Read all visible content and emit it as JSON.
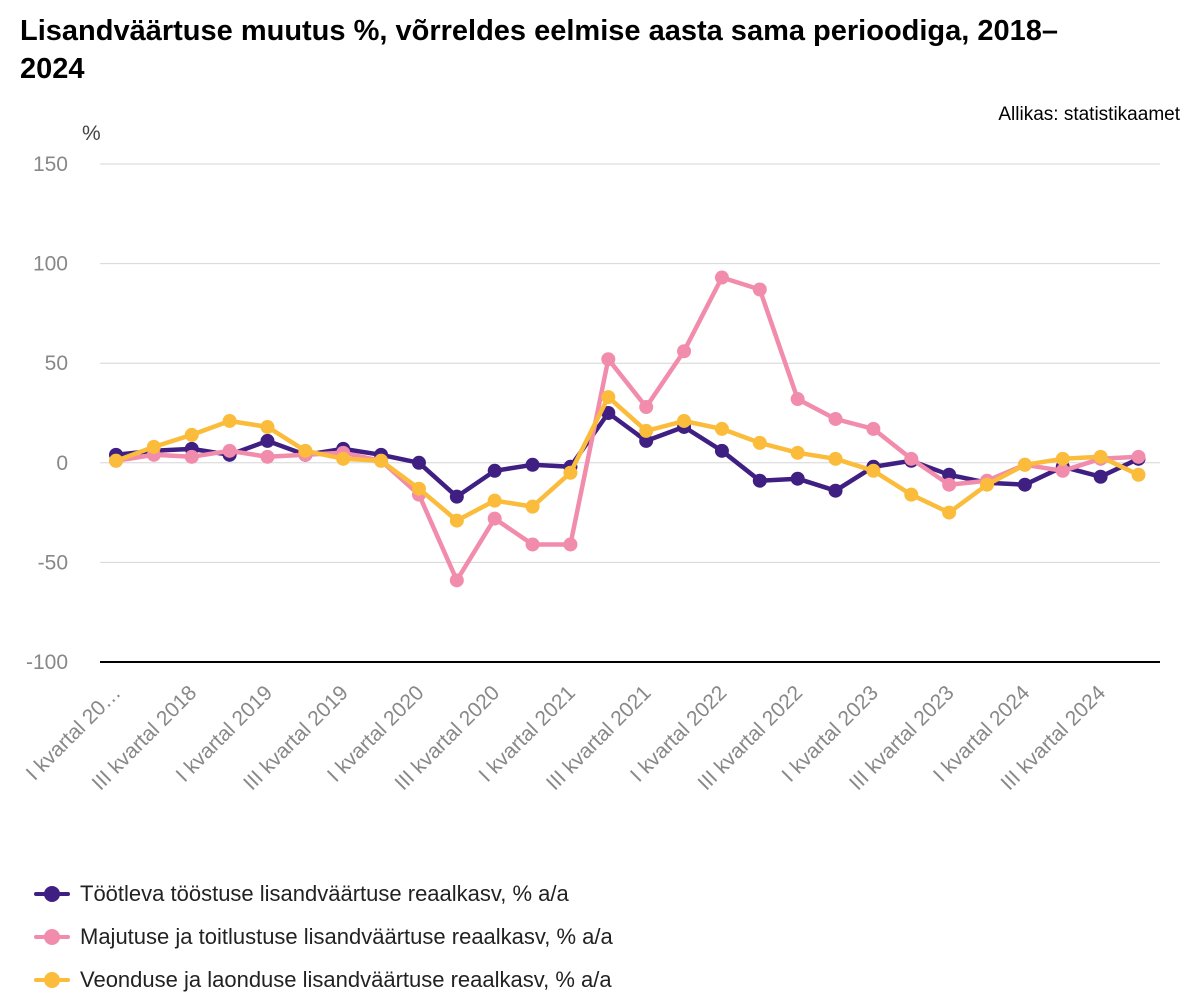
{
  "chart_data": {
    "type": "line",
    "title": "Lisandväärtuse muutus %, võrreldes eelmise aasta sama perioodiga, 2018–2024",
    "source": "Allikas: statistikaamet",
    "ylabel": "%",
    "ylim": [
      -100,
      150
    ],
    "yticks": [
      150,
      100,
      50,
      0,
      -50,
      -100
    ],
    "x": [
      "I kvartal 2018",
      "II kvartal 2018",
      "III kvartal 2018",
      "IV kvartal 2018",
      "I kvartal 2019",
      "II kvartal 2019",
      "III kvartal 2019",
      "IV kvartal 2019",
      "I kvartal 2020",
      "II kvartal 2020",
      "III kvartal 2020",
      "IV kvartal 2020",
      "I kvartal 2021",
      "II kvartal 2021",
      "III kvartal 2021",
      "IV kvartal 2021",
      "I kvartal 2022",
      "II kvartal 2022",
      "III kvartal 2022",
      "IV kvartal 2022",
      "I kvartal 2023",
      "II kvartal 2023",
      "III kvartal 2023",
      "IV kvartal 2023",
      "I kvartal 2024",
      "II kvartal 2024",
      "III kvartal 2024",
      "IV kvartal 2024"
    ],
    "xtick_labels": [
      {
        "index": 0,
        "label": "I kvartal 20…"
      },
      {
        "index": 2,
        "label": "III kvartal 2018"
      },
      {
        "index": 4,
        "label": "I kvartal 2019"
      },
      {
        "index": 6,
        "label": "III kvartal 2019"
      },
      {
        "index": 8,
        "label": "I kvartal 2020"
      },
      {
        "index": 10,
        "label": "III kvartal 2020"
      },
      {
        "index": 12,
        "label": "I kvartal 2021"
      },
      {
        "index": 14,
        "label": "III kvartal 2021"
      },
      {
        "index": 16,
        "label": "I kvartal 2022"
      },
      {
        "index": 18,
        "label": "III kvartal 2022"
      },
      {
        "index": 20,
        "label": "I kvartal 2023"
      },
      {
        "index": 22,
        "label": "III kvartal 2023"
      },
      {
        "index": 24,
        "label": "I kvartal 2024"
      },
      {
        "index": 26,
        "label": "III kvartal 2024"
      }
    ],
    "grid": true,
    "legend_position": "bottom",
    "series": [
      {
        "name": "Töötleva tööstuse lisandväärtuse reaalkasv, % a/a",
        "color": "#3f1f82",
        "values": [
          4,
          6,
          7,
          4,
          11,
          4,
          7,
          4,
          0,
          -17,
          -4,
          -1,
          -2,
          25,
          11,
          18,
          6,
          -9,
          -8,
          -14,
          -2,
          1,
          -6,
          -10,
          -11,
          -2,
          -7,
          2
        ]
      },
      {
        "name": "Majutuse ja toitlustuse lisandväärtuse reaalkasv, % a/a",
        "color": "#f28cac",
        "values": [
          1,
          4,
          3,
          6,
          3,
          4,
          5,
          1,
          -16,
          -59,
          -28,
          -41,
          -41,
          52,
          28,
          56,
          93,
          87,
          32,
          22,
          17,
          2,
          -11,
          -9,
          -1,
          -4,
          2,
          3
        ]
      },
      {
        "name": "Veonduse ja laonduse lisandväärtuse reaalkasv, % a/a",
        "color": "#fbbc3b",
        "values": [
          1,
          8,
          14,
          21,
          18,
          6,
          2,
          1,
          -13,
          -29,
          -19,
          -22,
          -5,
          33,
          16,
          21,
          17,
          10,
          5,
          2,
          -4,
          -16,
          -25,
          -11,
          -1,
          2,
          3,
          -6
        ]
      }
    ]
  }
}
